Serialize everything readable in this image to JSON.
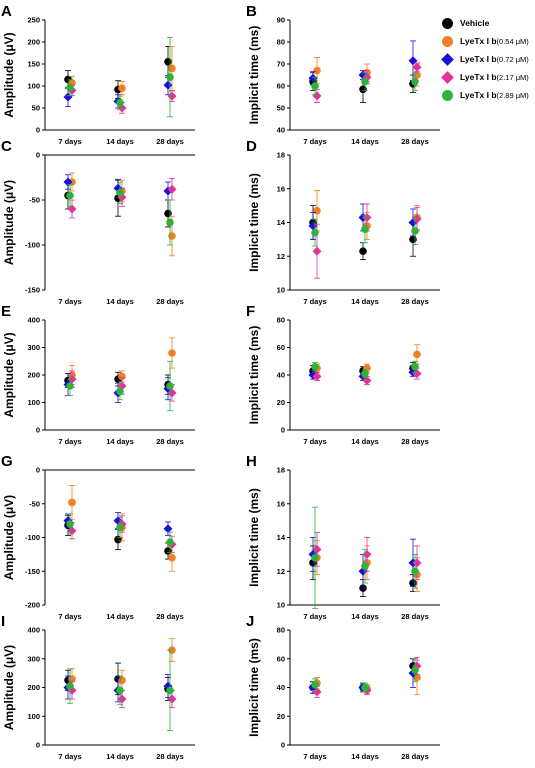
{
  "legend": [
    {
      "name": "Vehicle",
      "dose": "",
      "color": "#000000",
      "marker": "circle"
    },
    {
      "name": "LyeTx I b",
      "dose": "(0.54 μM)",
      "color": "#F07F25",
      "marker": "circle"
    },
    {
      "name": "LyeTx I b",
      "dose": "(0.72 μM)",
      "color": "#1A0FD9",
      "marker": "diamond"
    },
    {
      "name": "LyeTx I b",
      "dose": "(2.17 μM)",
      "color": "#E2339C",
      "marker": "diamond"
    },
    {
      "name": "LyeTx I b",
      "dose": "(2.89 μM)",
      "color": "#2DB33A",
      "marker": "circle"
    }
  ],
  "chart_data": [
    {
      "panel": "A",
      "type": "scatter",
      "ylabel": "Amplitude (μV)",
      "categories": [
        "7 days",
        "14 days",
        "28 days"
      ],
      "ylim": [
        0,
        250
      ],
      "yticks": [
        0,
        50,
        100,
        150,
        200,
        250
      ],
      "series": [
        {
          "name": "Vehicle",
          "values": [
            115,
            92,
            155
          ],
          "errors": [
            20,
            20,
            35
          ]
        },
        {
          "name": "LyeTx I b (0.54 μM)",
          "values": [
            107,
            95,
            140
          ],
          "errors": [
            15,
            15,
            50
          ]
        },
        {
          "name": "LyeTx I b (0.72 μM)",
          "values": [
            75,
            65,
            102
          ],
          "errors": [
            22,
            15,
            22
          ]
        },
        {
          "name": "LyeTx I b (2.17 μM)",
          "values": [
            90,
            50,
            77
          ],
          "errors": [
            12,
            12,
            12
          ]
        },
        {
          "name": "LyeTx I b (2.89 μM)",
          "values": [
            96,
            62,
            120
          ],
          "errors": [
            18,
            15,
            90
          ]
        }
      ]
    },
    {
      "panel": "B",
      "type": "scatter",
      "ylabel": "Implicit time (ms)",
      "categories": [
        "7 days",
        "14 days",
        "28 days"
      ],
      "ylim": [
        40,
        90
      ],
      "yticks": [
        40,
        50,
        60,
        70,
        80,
        90
      ],
      "series": [
        {
          "name": "Vehicle",
          "values": [
            62,
            58.5,
            61
          ],
          "errors": [
            4,
            6,
            4
          ]
        },
        {
          "name": "LyeTx I b (0.54 μM)",
          "values": [
            67,
            66,
            65
          ],
          "errors": [
            6,
            4,
            5
          ]
        },
        {
          "name": "LyeTx I b (0.72 μM)",
          "values": [
            63.5,
            65,
            71.5
          ],
          "errors": [
            3,
            2,
            9
          ]
        },
        {
          "name": "LyeTx I b (2.17 μM)",
          "values": [
            55.5,
            64,
            68.5
          ],
          "errors": [
            3,
            3,
            2
          ]
        },
        {
          "name": "LyeTx I b (2.89 μM)",
          "values": [
            60,
            62,
            62
          ],
          "errors": [
            4,
            4,
            4
          ]
        }
      ]
    },
    {
      "panel": "C",
      "type": "scatter",
      "ylabel": "Amplitude (μV)",
      "categories": [
        "7 days",
        "14 days",
        "28 days"
      ],
      "ylim": [
        -150,
        0
      ],
      "yticks": [
        0,
        -50,
        -100,
        -150
      ],
      "series": [
        {
          "name": "Vehicle",
          "values": [
            -45,
            -48,
            -65
          ],
          "errors": [
            15,
            20,
            15
          ]
        },
        {
          "name": "LyeTx I b (0.54 μM)",
          "values": [
            -30,
            -40,
            -90
          ],
          "errors": [
            10,
            12,
            22
          ]
        },
        {
          "name": "LyeTx I b (0.72 μM)",
          "values": [
            -30,
            -37,
            -40
          ],
          "errors": [
            8,
            10,
            10
          ]
        },
        {
          "name": "LyeTx I b (2.17 μM)",
          "values": [
            -60,
            -47,
            -38
          ],
          "errors": [
            10,
            10,
            12
          ]
        },
        {
          "name": "LyeTx I b (2.89 μM)",
          "values": [
            -45,
            -42,
            -75
          ],
          "errors": [
            12,
            12,
            25
          ]
        }
      ]
    },
    {
      "panel": "D",
      "type": "scatter",
      "ylabel": "Implicit time (ms)",
      "categories": [
        "7 days",
        "14 days",
        "28 days"
      ],
      "ylim": [
        10,
        18
      ],
      "yticks": [
        10,
        12,
        14,
        16,
        18
      ],
      "series": [
        {
          "name": "Vehicle",
          "values": [
            14,
            12.3,
            13
          ],
          "errors": [
            1,
            0.5,
            1
          ]
        },
        {
          "name": "LyeTx I b (0.54 μM)",
          "values": [
            14.7,
            13.8,
            14.3
          ],
          "errors": [
            1.2,
            0.8,
            0.7
          ]
        },
        {
          "name": "LyeTx I b (0.72 μM)",
          "values": [
            13.8,
            14.3,
            14
          ],
          "errors": [
            0.8,
            0.8,
            0.8
          ]
        },
        {
          "name": "LyeTx I b (2.17 μM)",
          "values": [
            12.3,
            14.3,
            14.2
          ],
          "errors": [
            1.6,
            0.8,
            0.7
          ]
        },
        {
          "name": "LyeTx I b (2.89 μM)",
          "values": [
            13.4,
            13.6,
            13.5
          ],
          "errors": [
            0.8,
            0.8,
            0.8
          ]
        }
      ]
    },
    {
      "panel": "E",
      "type": "scatter",
      "ylabel": "Amplitude (μV)",
      "categories": [
        "7 days",
        "14 days",
        "28 days"
      ],
      "ylim": [
        0,
        400
      ],
      "yticks": [
        0,
        100,
        200,
        300,
        400
      ],
      "series": [
        {
          "name": "Vehicle",
          "values": [
            180,
            185,
            165
          ],
          "errors": [
            25,
            25,
            35
          ]
        },
        {
          "name": "LyeTx I b (0.54 μM)",
          "values": [
            200,
            195,
            280
          ],
          "errors": [
            35,
            20,
            55
          ]
        },
        {
          "name": "LyeTx I b (0.72 μM)",
          "values": [
            165,
            135,
            150
          ],
          "errors": [
            40,
            35,
            40
          ]
        },
        {
          "name": "LyeTx I b (2.17 μM)",
          "values": [
            185,
            160,
            135
          ],
          "errors": [
            30,
            30,
            30
          ]
        },
        {
          "name": "LyeTx I b (2.89 μM)",
          "values": [
            160,
            140,
            160
          ],
          "errors": [
            35,
            30,
            90
          ]
        }
      ]
    },
    {
      "panel": "F",
      "type": "scatter",
      "ylabel": "Implicit time (ms)",
      "categories": [
        "7 days",
        "14 days",
        "28 days"
      ],
      "ylim": [
        0,
        80
      ],
      "yticks": [
        0,
        20,
        40,
        60,
        80
      ],
      "series": [
        {
          "name": "Vehicle",
          "values": [
            43,
            43,
            45
          ],
          "errors": [
            4,
            3,
            4
          ]
        },
        {
          "name": "LyeTx I b (0.54 μM)",
          "values": [
            45,
            45,
            55
          ],
          "errors": [
            3,
            3,
            7
          ]
        },
        {
          "name": "LyeTx I b (0.72 μM)",
          "values": [
            40,
            39,
            42
          ],
          "errors": [
            3,
            3,
            3
          ]
        },
        {
          "name": "LyeTx I b (2.17 μM)",
          "values": [
            39,
            36,
            41
          ],
          "errors": [
            3,
            3,
            4
          ]
        },
        {
          "name": "LyeTx I b (2.89 μM)",
          "values": [
            46,
            41,
            46
          ],
          "errors": [
            3,
            3,
            4
          ]
        }
      ]
    },
    {
      "panel": "G",
      "type": "scatter",
      "ylabel": "Amplitude (μV)",
      "categories": [
        "7 days",
        "14 days",
        "28 days"
      ],
      "ylim": [
        -200,
        0
      ],
      "yticks": [
        0,
        -50,
        -100,
        -150,
        -200
      ],
      "series": [
        {
          "name": "Vehicle",
          "values": [
            -82,
            -103,
            -120
          ],
          "errors": [
            15,
            15,
            12
          ]
        },
        {
          "name": "LyeTx I b (0.54 μM)",
          "values": [
            -48,
            -85,
            -130
          ],
          "errors": [
            25,
            20,
            20
          ]
        },
        {
          "name": "LyeTx I b (0.72 μM)",
          "values": [
            -75,
            -75,
            -87
          ],
          "errors": [
            10,
            12,
            10
          ]
        },
        {
          "name": "LyeTx I b (2.17 μM)",
          "values": [
            -90,
            -80,
            -110
          ],
          "errors": [
            12,
            12,
            12
          ]
        },
        {
          "name": "LyeTx I b (2.89 μM)",
          "values": [
            -80,
            -85,
            -107
          ],
          "errors": [
            15,
            15,
            15
          ]
        }
      ]
    },
    {
      "panel": "H",
      "type": "scatter",
      "ylabel": "Implicit time (ms)",
      "categories": [
        "7 days",
        "14 days",
        "28 days"
      ],
      "ylim": [
        10,
        18
      ],
      "yticks": [
        10,
        12,
        14,
        16,
        18
      ],
      "series": [
        {
          "name": "Vehicle",
          "values": [
            12.5,
            11,
            11.3
          ],
          "errors": [
            1,
            0.5,
            0.5
          ]
        },
        {
          "name": "LyeTx I b (0.54 μM)",
          "values": [
            12.8,
            12.5,
            11.8
          ],
          "errors": [
            1,
            1,
            1
          ]
        },
        {
          "name": "LyeTx I b (0.72 μM)",
          "values": [
            13,
            12,
            12.5
          ],
          "errors": [
            1,
            1,
            1.4
          ]
        },
        {
          "name": "LyeTx I b (2.17 μM)",
          "values": [
            13.3,
            13,
            12.5
          ],
          "errors": [
            1,
            1,
            1
          ]
        },
        {
          "name": "LyeTx I b (2.89 μM)",
          "values": [
            12.8,
            12.3,
            12
          ],
          "errors": [
            3,
            1,
            1
          ]
        }
      ]
    },
    {
      "panel": "I",
      "type": "scatter",
      "ylabel": "Amplitude (μV)",
      "categories": [
        "7 days",
        "14 days",
        "28 days"
      ],
      "ylim": [
        0,
        400
      ],
      "yticks": [
        0,
        100,
        200,
        300,
        400
      ],
      "series": [
        {
          "name": "Vehicle",
          "values": [
            225,
            230,
            195
          ],
          "errors": [
            35,
            55,
            40
          ]
        },
        {
          "name": "LyeTx I b (0.54 μM)",
          "values": [
            230,
            225,
            330
          ],
          "errors": [
            35,
            35,
            40
          ]
        },
        {
          "name": "LyeTx I b (0.72 μM)",
          "values": [
            200,
            190,
            205
          ],
          "errors": [
            40,
            40,
            40
          ]
        },
        {
          "name": "LyeTx I b (2.17 μM)",
          "values": [
            190,
            160,
            160
          ],
          "errors": [
            30,
            30,
            30
          ]
        },
        {
          "name": "LyeTx I b (2.89 μM)",
          "values": [
            205,
            190,
            190
          ],
          "errors": [
            60,
            50,
            140
          ]
        }
      ]
    },
    {
      "panel": "J",
      "type": "scatter",
      "ylabel": "Implicit time (ms)",
      "categories": [
        "7 days",
        "14 days",
        "28 days"
      ],
      "ylim": [
        0,
        80
      ],
      "yticks": [
        0,
        20,
        40,
        60,
        80
      ],
      "series": [
        {
          "name": "Vehicle",
          "values": [
            40,
            40,
            55
          ],
          "errors": [
            4,
            3,
            5
          ]
        },
        {
          "name": "LyeTx I b (0.54 μM)",
          "values": [
            43,
            39,
            47
          ],
          "errors": [
            4,
            3,
            12
          ]
        },
        {
          "name": "LyeTx I b (0.72 μM)",
          "values": [
            40,
            40,
            50
          ],
          "errors": [
            4,
            3,
            10
          ]
        },
        {
          "name": "LyeTx I b (2.17 μM)",
          "values": [
            37,
            38,
            55
          ],
          "errors": [
            4,
            3,
            6
          ]
        },
        {
          "name": "LyeTx I b (2.89 μM)",
          "values": [
            42,
            40,
            52
          ],
          "errors": [
            4,
            3,
            8
          ]
        }
      ]
    }
  ]
}
